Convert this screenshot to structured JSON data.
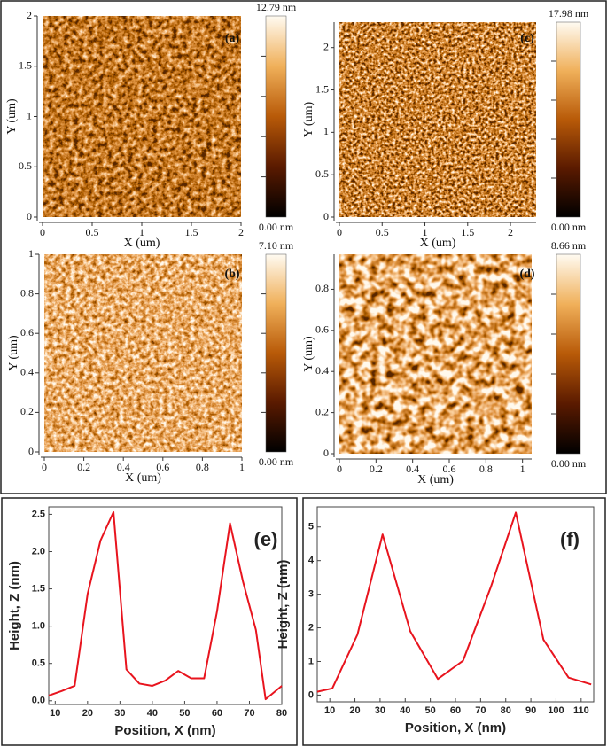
{
  "chart_data": [
    {
      "type": "image",
      "label": "(a)",
      "xlabel": "X (um)",
      "ylabel": "Y (um)",
      "xlim": [
        0,
        2
      ],
      "xticks": [
        0,
        0.5,
        1,
        1.5,
        2
      ],
      "ylim": [
        0,
        2
      ],
      "yticks": [
        0,
        0.5,
        1,
        1.5,
        2
      ],
      "clim": [
        0,
        12.79
      ],
      "cticks": [
        {
          "value": 12.79,
          "label": "12.79 nm"
        },
        {
          "value": 0,
          "label": "0.00 nm"
        }
      ]
    },
    {
      "type": "image",
      "label": "(c)",
      "xlabel": "X (um)",
      "ylabel": "Y (um)",
      "xlim": [
        0,
        2.3
      ],
      "xticks": [
        0,
        0.5,
        1,
        1.5,
        2
      ],
      "ylim": [
        0,
        2.3
      ],
      "yticks": [
        0,
        0.5,
        1,
        1.5,
        2
      ],
      "clim": [
        0,
        17.98
      ],
      "cticks": [
        {
          "value": 17.98,
          "label": "17.98 nm"
        },
        {
          "value": 0,
          "label": "0.00 nm"
        }
      ]
    },
    {
      "type": "image",
      "label": "(b)",
      "xlabel": "X (um)",
      "ylabel": "Y (um)",
      "xlim": [
        0,
        1
      ],
      "xticks": [
        0,
        0.2,
        0.4,
        0.6,
        0.8,
        1
      ],
      "ylim": [
        0,
        1
      ],
      "yticks": [
        0,
        0.2,
        0.4,
        0.6,
        0.8,
        1
      ],
      "clim": [
        0,
        7.1
      ],
      "cticks": [
        {
          "value": 7.1,
          "label": "7.10 nm"
        },
        {
          "value": 0,
          "label": "0.00 nm"
        }
      ]
    },
    {
      "type": "image",
      "label": "(d)",
      "xlabel": "X (um)",
      "ylabel": "Y (um)",
      "xlim": [
        0,
        1.05
      ],
      "xticks": [
        0,
        0.2,
        0.4,
        0.6,
        0.8,
        1
      ],
      "ylim": [
        0,
        0.97
      ],
      "yticks": [
        0,
        0.2,
        0.4,
        0.6,
        0.8
      ],
      "clim": [
        0,
        8.66
      ],
      "cticks": [
        {
          "value": 8.66,
          "label": "8.66 nm"
        },
        {
          "value": 0,
          "label": "0.00 nm"
        }
      ]
    },
    {
      "type": "line",
      "label": "(e)",
      "xlabel": "Position, X (nm)",
      "ylabel": "Height, Z (nm)",
      "x": [
        8,
        12,
        16,
        20,
        24,
        28,
        32,
        36,
        40,
        44,
        48,
        52,
        56,
        60,
        64,
        68,
        72,
        75,
        80
      ],
      "series": [
        {
          "color": "#e8141e",
          "values": [
            0.07,
            0.13,
            0.2,
            1.43,
            2.15,
            2.53,
            0.42,
            0.23,
            0.2,
            0.27,
            0.4,
            0.3,
            0.3,
            1.2,
            2.38,
            1.6,
            0.95,
            0.02,
            0.2
          ]
        }
      ],
      "xlim": [
        8,
        80
      ],
      "xticks": [
        10,
        20,
        30,
        40,
        50,
        60,
        70,
        80
      ],
      "ylim": [
        -0.05,
        2.6
      ],
      "yticks": [
        {
          "value": 0,
          "label": "0.0"
        },
        0.5,
        {
          "value": 1,
          "label": "1.0"
        },
        1.5,
        {
          "value": 2,
          "label": "2.0"
        },
        2.5
      ]
    },
    {
      "type": "line",
      "label": "(f)",
      "xlabel": "Position, X (nm)",
      "ylabel": "Height, Z (nm)",
      "x": [
        5,
        11,
        21,
        31,
        42,
        53,
        63,
        74,
        84,
        95,
        105,
        114
      ],
      "series": [
        {
          "color": "#e8141e",
          "values": [
            0.1,
            0.2,
            1.8,
            4.78,
            1.9,
            0.48,
            1.02,
            3.2,
            5.43,
            1.65,
            0.52,
            0.32
          ]
        }
      ],
      "xlim": [
        5,
        115
      ],
      "xticks": [
        10,
        20,
        30,
        40,
        50,
        60,
        70,
        80,
        90,
        100,
        110
      ],
      "ylim": [
        -0.2,
        5.6
      ],
      "yticks": [
        0,
        1,
        2,
        3,
        4,
        5
      ]
    }
  ]
}
